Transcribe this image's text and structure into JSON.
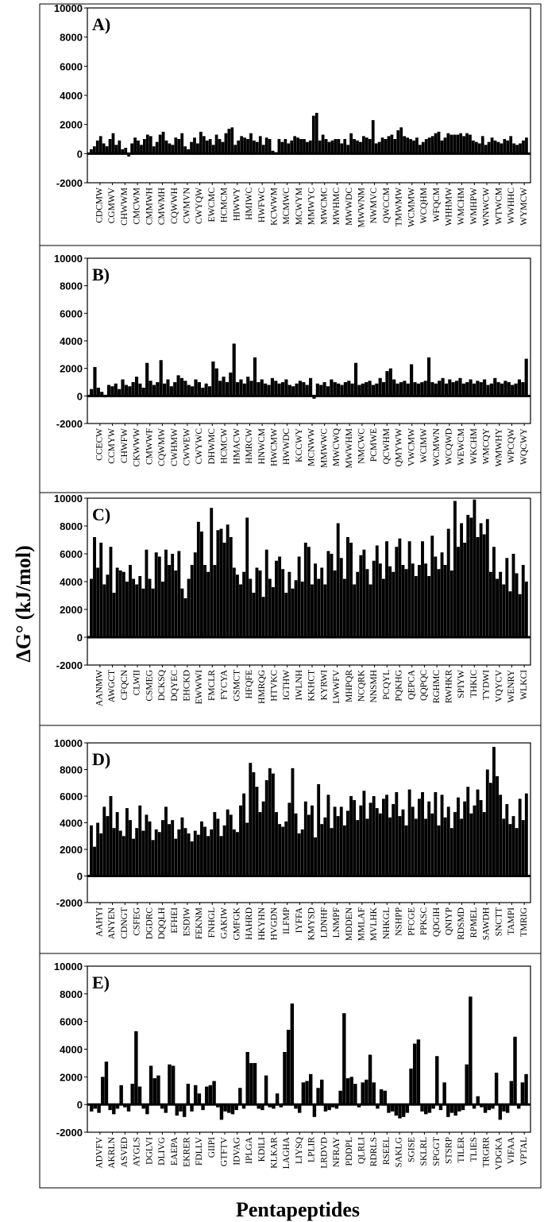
{
  "figure": {
    "ylabel": "ΔG° (kJ/mol)",
    "xlabel": "Pentapeptides"
  },
  "chart_data": [
    {
      "type": "bar",
      "panel_label": "A)",
      "ylim": [
        -2000,
        10000
      ],
      "yticks": [
        10000,
        8000,
        6000,
        4000,
        2000,
        0,
        -2000
      ],
      "tick_labels": [
        "CDCMW",
        "CGMWV",
        "CHWWM",
        "CMCWM",
        "CMMWH",
        "CMWMH",
        "CQWWH",
        "CWMVN",
        "CWYQW",
        "EWCMC",
        "HCMCM",
        "HIWWY",
        "HMIWC",
        "HWFWC",
        "KCWWM",
        "MCMWC",
        "MCWYM",
        "MMWYC",
        "MWCMC",
        "MWHMC",
        "MWWDC",
        "MWWNM",
        "NWMVC",
        "QWCCM",
        "TMWMW",
        "WCMMW",
        "WCQHM",
        "WFQCM",
        "WHHMW",
        "WMCHM",
        "WMHPW",
        "WNWCW",
        "WTWCM",
        "WWHHC",
        "WYMCW"
      ],
      "values": [
        300,
        500,
        900,
        1200,
        700,
        500,
        1000,
        1400,
        600,
        900,
        300,
        400,
        -200,
        700,
        1100,
        900,
        600,
        1000,
        1300,
        1200,
        500,
        800,
        1300,
        1500,
        900,
        700,
        600,
        1100,
        1000,
        1400,
        500,
        300,
        800,
        1100,
        700,
        1500,
        1200,
        900,
        1000,
        600,
        1300,
        1000,
        800,
        1400,
        1700,
        1800,
        600,
        900,
        1200,
        1100,
        1000,
        1400,
        900,
        800,
        1200,
        600,
        1100,
        1000,
        200,
        100,
        1000,
        800,
        1000,
        700,
        900,
        1200,
        1100,
        1000,
        1000,
        800,
        900,
        2600,
        2800,
        900,
        1300,
        1000,
        800,
        900,
        1000,
        1000,
        700,
        1000,
        600,
        1400,
        1000,
        900,
        800,
        1200,
        1100,
        1000,
        2300,
        700,
        800,
        1100,
        1000,
        1200,
        1300,
        1000,
        1600,
        1800,
        1200,
        1100,
        1000,
        900,
        1100,
        600,
        800,
        1000,
        1100,
        1200,
        1400,
        1500,
        900,
        1100,
        1400,
        1300,
        1300,
        1300,
        1400,
        1200,
        1400,
        1300,
        900,
        800,
        700,
        1200,
        600,
        800,
        1100,
        900,
        800,
        700,
        1000,
        900,
        1200,
        700,
        600,
        700,
        900,
        1100
      ]
    },
    {
      "type": "bar",
      "panel_label": "B)",
      "ylim": [
        -2000,
        10000
      ],
      "yticks": [
        10000,
        8000,
        6000,
        4000,
        2000,
        0,
        -2000
      ],
      "tick_labels": [
        "CCECW",
        "CCMYW",
        "CHWFW",
        "CKWWW",
        "CMWWF",
        "CQWMW",
        "CWHMW",
        "CWWEW",
        "CWYWC",
        "DHWMC",
        "HCMCW",
        "HMACW",
        "HMRCW",
        "HNWCM",
        "HWCMW",
        "HWWDC",
        "KCCWY",
        "MCNWW",
        "MMWWC",
        "MWCWQ",
        "MWWHM",
        "NMCWC",
        "PCMWE",
        "QCWHM",
        "QMYWW",
        "VWCMW",
        "WCIMW",
        "WCMWN",
        "WCQWD",
        "WEWCM",
        "WKCHM",
        "WMCQY",
        "WMWHY",
        "WPCQW",
        "WQCWY"
      ],
      "values": [
        500,
        2100,
        600,
        300,
        -100,
        800,
        700,
        900,
        500,
        1200,
        800,
        700,
        1000,
        1400,
        900,
        600,
        2400,
        1100,
        800,
        1000,
        2600,
        900,
        1200,
        700,
        1000,
        1500,
        1300,
        1100,
        800,
        700,
        1200,
        1000,
        600,
        900,
        700,
        2500,
        2000,
        1100,
        1400,
        1000,
        1700,
        3800,
        1000,
        1200,
        900,
        1400,
        1100,
        2800,
        1000,
        1200,
        900,
        800,
        1300,
        1100,
        900,
        1000,
        1200,
        800,
        700,
        900,
        1100,
        1000,
        800,
        1300,
        -200,
        900,
        800,
        1000,
        700,
        1200,
        1000,
        900,
        800,
        1000,
        1100,
        900,
        2400,
        800,
        900,
        1000,
        1100,
        800,
        900,
        1300,
        1000,
        1800,
        2000,
        1200,
        900,
        1000,
        1100,
        900,
        2300,
        1000,
        900,
        1000,
        1100,
        2800,
        1000,
        900,
        1100,
        1300,
        900,
        1200,
        1000,
        1100,
        1300,
        900,
        1000,
        1200,
        900,
        1100,
        1000,
        1200,
        800,
        900,
        1300,
        1000,
        900,
        1100,
        1000,
        800,
        900,
        1200,
        1000,
        2700
      ]
    },
    {
      "type": "bar",
      "panel_label": "C)",
      "ylim": [
        -2000,
        10000
      ],
      "yticks": [
        10000,
        8000,
        6000,
        4000,
        2000,
        0,
        -2000
      ],
      "tick_labels": [
        "AANMW",
        "AWGCT",
        "CFQCN",
        "CLWII",
        "CSMEG",
        "DCKSQ",
        "DQYEC",
        "EHCKD",
        "EWWWI",
        "FMCLR",
        "FYCYA",
        "GSMCT",
        "HFQFE",
        "HMRQG",
        "HTVKC",
        "IGTHW",
        "IWLNH",
        "KKHCT",
        "KYRWI",
        "LWWFV",
        "MHPQR",
        "NCQRK",
        "NNSMH",
        "PCQYL",
        "PQKHG",
        "QEPCA",
        "QQPQC",
        "RGHMC",
        "RWHKR",
        "SPIYW",
        "THKIC",
        "TYDWI",
        "VQYCV",
        "WENRY",
        "WLKCI"
      ],
      "values": [
        4200,
        7200,
        5000,
        6800,
        3800,
        4500,
        6500,
        3200,
        5000,
        4800,
        4700,
        4000,
        5200,
        4200,
        3800,
        4400,
        3500,
        6300,
        4200,
        3500,
        6100,
        5800,
        4000,
        6300,
        5200,
        6000,
        4800,
        6200,
        3500,
        2800,
        4200,
        5200,
        6100,
        8300,
        7600,
        5200,
        4700,
        9300,
        5200,
        7700,
        7800,
        6800,
        8100,
        7200,
        5000,
        4500,
        3800,
        4700,
        8600,
        4200,
        3200,
        5000,
        4800,
        2900,
        6300,
        4200,
        3600,
        5500,
        5800,
        4900,
        3200,
        4700,
        3500,
        4100,
        5800,
        4000,
        6800,
        6500,
        3800,
        5300,
        4200,
        5000,
        3800,
        6200,
        6000,
        4800,
        8200,
        5700,
        4200,
        7200,
        6800,
        3800,
        4700,
        5900,
        6300,
        4900,
        3800,
        5500,
        6600,
        5300,
        4200,
        6900,
        5100,
        4700,
        6500,
        7100,
        5200,
        4900,
        6900,
        5300,
        4400,
        5200,
        6900,
        5300,
        4400,
        7300,
        5800,
        4900,
        6100,
        5200,
        7800,
        4800,
        9800,
        6500,
        8200,
        6800,
        8800,
        8600,
        9900,
        7200,
        8200,
        7400,
        8500,
        4700,
        6500,
        4200,
        4700,
        3800,
        5700,
        3300,
        6000,
        4600,
        3100,
        5200,
        4000
      ]
    },
    {
      "type": "bar",
      "panel_label": "D)",
      "ylim": [
        -2000,
        10000
      ],
      "yticks": [
        10000,
        8000,
        6000,
        4000,
        2000,
        0,
        -2000
      ],
      "tick_labels": [
        "AAHYI",
        "ANYEN",
        "CDNGT",
        "CSFEG",
        "DGDRC",
        "DQQLH",
        "EFHEI",
        "ESDIW",
        "FEKNM",
        "FNHGL",
        "GAKIW",
        "GMFGK",
        "HAHRD",
        "HKYHN",
        "HVGDN",
        "ILFMP",
        "IYFFA",
        "KMYSD",
        "LDNHF",
        "LNMPF",
        "MDDEN",
        "MMLAF",
        "MVLHK",
        "NHKGL",
        "NSHPP",
        "PFCGE",
        "PPKSC",
        "QDGIH",
        "QNIYP",
        "RDSMD",
        "RPMEL",
        "SAWDH",
        "SNCTT",
        "TAMPI",
        "TMRIG"
      ],
      "values": [
        3800,
        2200,
        4000,
        3200,
        5200,
        4500,
        6000,
        3600,
        4800,
        3400,
        3000,
        5100,
        4200,
        2800,
        3600,
        5300,
        3400,
        4600,
        4100,
        2700,
        3500,
        3300,
        4200,
        5200,
        3900,
        4200,
        2800,
        3500,
        4400,
        3600,
        3200,
        2600,
        3400,
        3100,
        4100,
        3700,
        3000,
        3500,
        4800,
        4300,
        3000,
        3800,
        5000,
        4600,
        3500,
        3300,
        5300,
        6200,
        4000,
        8500,
        7800,
        6700,
        4800,
        5600,
        7200,
        8100,
        7700,
        4800,
        3900,
        3700,
        4100,
        5500,
        8100,
        4700,
        3200,
        3500,
        5600,
        4600,
        5300,
        2900,
        6900,
        3900,
        4400,
        6100,
        3600,
        5200,
        4500,
        5200,
        3800,
        4900,
        6000,
        5700,
        4200,
        5300,
        6400,
        4300,
        5500,
        6000,
        5100,
        4700,
        5800,
        6100,
        4400,
        5400,
        6300,
        4500,
        5000,
        3800,
        6500,
        5200,
        4300,
        5800,
        6300,
        4300,
        5600,
        4700,
        6300,
        3800,
        6100,
        4400,
        5200,
        3600,
        4800,
        5900,
        4300,
        5600,
        6700,
        4700,
        5300,
        6500,
        5700,
        4800,
        8000,
        7000,
        9700,
        7500,
        6100,
        4300,
        5400,
        3900,
        4500,
        3600,
        5800,
        4200,
        6200
      ]
    },
    {
      "type": "bar",
      "panel_label": "E)",
      "ylim": [
        -2000,
        10000
      ],
      "yticks": [
        10000,
        8000,
        6000,
        4000,
        2000,
        0,
        -2000
      ],
      "tick_labels": [
        "ADVFV",
        "AKRLN",
        "ASVED",
        "AYGLS",
        "DGLVI",
        "DLIVG",
        "EAEPA",
        "EKRER",
        "FDLLV",
        "GIIPI",
        "GTFTV",
        "IDVAG",
        "IPLGA",
        "KDILI",
        "KLKAR",
        "LAGHA",
        "LIYSQ",
        "LPLIR",
        "LRDVD",
        "NFRAY",
        "PDDPL",
        "QLRLI",
        "RDRLS",
        "RSEEL",
        "SAKLG",
        "SGISE",
        "SKLRL",
        "SPGGT",
        "STSRP",
        "TILER",
        "TLIES",
        "TRGRR",
        "VDGKA",
        "VIFAA",
        "VPTAL"
      ],
      "values": [
        -500,
        -300,
        -600,
        2000,
        3100,
        -400,
        -700,
        -300,
        1400,
        -200,
        -500,
        1500,
        5300,
        1300,
        -300,
        -700,
        2800,
        1900,
        2100,
        -300,
        -600,
        2900,
        2800,
        -800,
        -500,
        -900,
        1500,
        -500,
        1400,
        800,
        -400,
        1300,
        1400,
        1700,
        -200,
        -1100,
        -500,
        -600,
        -700,
        -400,
        1200,
        -300,
        3800,
        3000,
        3000,
        -300,
        -400,
        2100,
        -200,
        -300,
        800,
        -200,
        3800,
        5400,
        7300,
        -300,
        -600,
        1600,
        1700,
        2200,
        -900,
        1200,
        1800,
        -500,
        -400,
        -200,
        -300,
        1000,
        6600,
        1900,
        2000,
        1500,
        -200,
        1600,
        1800,
        3600,
        1600,
        -300,
        1100,
        1000,
        -600,
        -500,
        -800,
        -1000,
        -900,
        -600,
        2600,
        4400,
        4700,
        -500,
        -700,
        -600,
        -300,
        3500,
        -400,
        1600,
        -900,
        -600,
        -800,
        -500,
        -400,
        2900,
        7800,
        -300,
        600,
        -200,
        -600,
        -400,
        -300,
        2300,
        -1100,
        -500,
        -600,
        1700,
        4900,
        -300,
        1600,
        2200
      ]
    }
  ]
}
